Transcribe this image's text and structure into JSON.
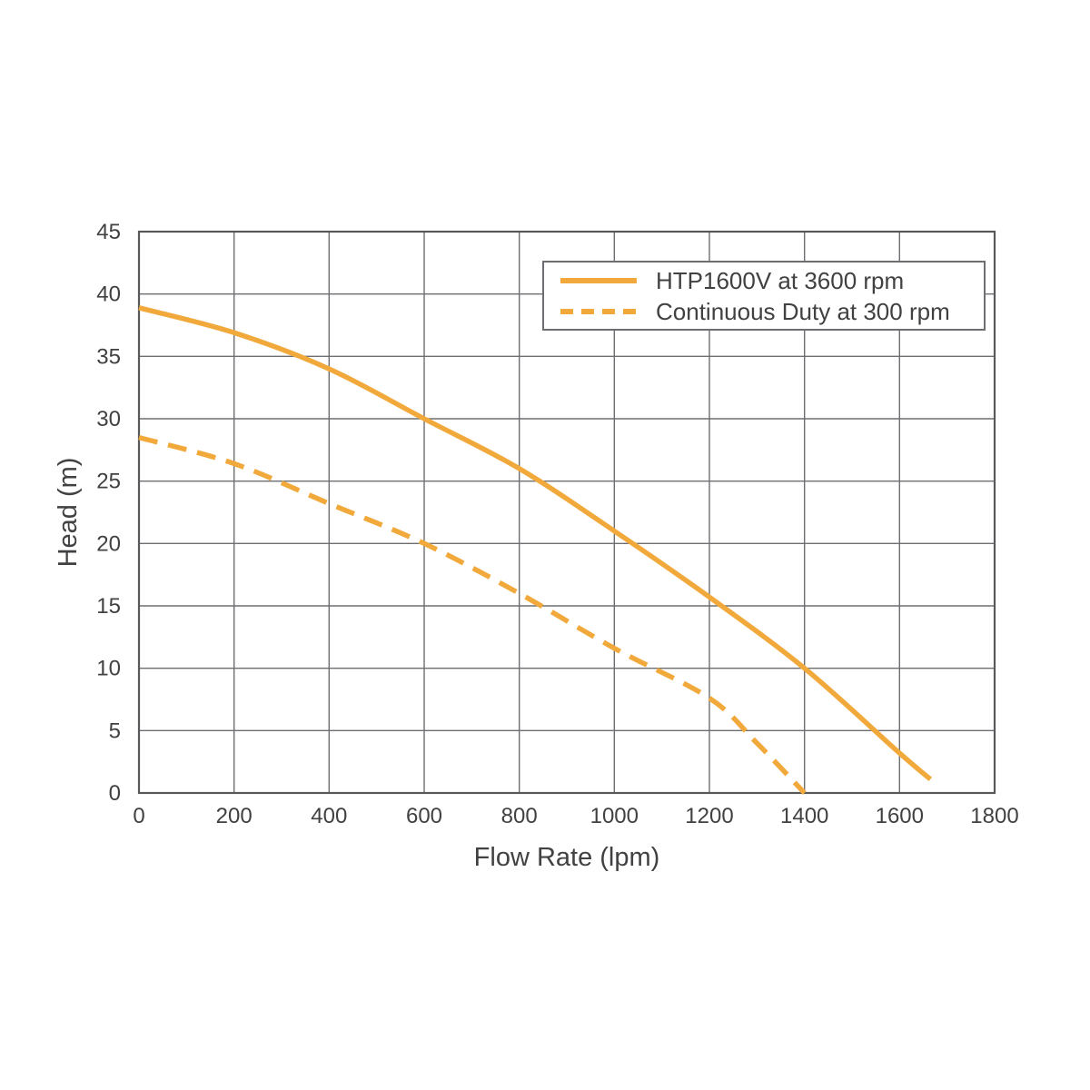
{
  "chart_data": {
    "type": "line",
    "title": "",
    "xlabel": "Flow Rate (lpm)",
    "ylabel": "Head (m)",
    "xlim": [
      0,
      1800
    ],
    "ylim": [
      0,
      45
    ],
    "x_ticks": [
      0,
      200,
      400,
      600,
      800,
      1000,
      1200,
      1400,
      1600,
      1800
    ],
    "y_ticks": [
      0,
      5,
      10,
      15,
      20,
      25,
      30,
      35,
      40,
      45
    ],
    "grid": true,
    "legend_position": "top-right-inside",
    "series": [
      {
        "name": "HTP1600V at 3600 rpm",
        "line_style": "solid",
        "color": "#F2A93C",
        "points": [
          [
            0,
            38.9
          ],
          [
            200,
            36.9
          ],
          [
            400,
            34.0
          ],
          [
            600,
            30.0
          ],
          [
            800,
            26.0
          ],
          [
            1000,
            21.0
          ],
          [
            1200,
            15.7
          ],
          [
            1400,
            10.0
          ],
          [
            1600,
            3.2
          ],
          [
            1665,
            1.1
          ]
        ]
      },
      {
        "name": "Continuous Duty at 300 rpm",
        "line_style": "dashed",
        "color": "#F2A93C",
        "points": [
          [
            0,
            28.5
          ],
          [
            200,
            26.4
          ],
          [
            400,
            23.2
          ],
          [
            600,
            20.0
          ],
          [
            800,
            16.0
          ],
          [
            1000,
            11.6
          ],
          [
            1200,
            7.6
          ],
          [
            1300,
            4.0
          ],
          [
            1400,
            0.0
          ]
        ]
      }
    ],
    "colors": {
      "curve": "#F2A93C",
      "grid": "#6D6E71",
      "border": "#58595B",
      "text": "#414042",
      "legend_border": "#6D6E71",
      "background": "#FFFFFF"
    }
  }
}
